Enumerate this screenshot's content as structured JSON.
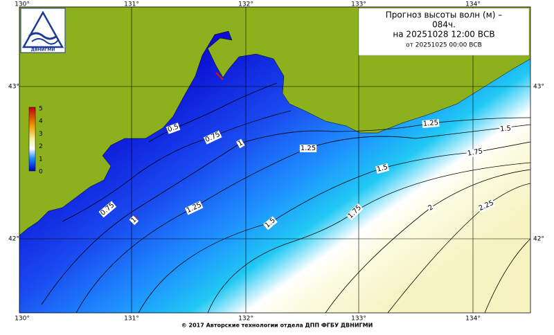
{
  "title": {
    "lines": [
      "Прогноз высоты волн (м) –",
      "084ч.",
      "на 20251028 12:00 ВСВ",
      "от 20251025 00:00 ВСВ"
    ]
  },
  "logo": {
    "text": "ДВНИГМИ"
  },
  "axes": {
    "longitudes": [
      "130°",
      "131°",
      "132°",
      "133°",
      "134°"
    ],
    "latitudes": [
      "43°",
      "42°"
    ]
  },
  "colorbar": {
    "labels": [
      "5",
      "4",
      "3",
      "2",
      "1",
      "0"
    ]
  },
  "contour_labels": [
    "0.5",
    "0.75",
    "1",
    "1.25",
    "1.25",
    "1.5",
    "1.75",
    "1.5",
    "0.75",
    "1",
    "1.25",
    "1.5",
    "1.75",
    "2",
    "2.25"
  ],
  "footer": "© 2017 Авторские технологии отдела ДПП ФГБУ ДВНИГМИ"
}
